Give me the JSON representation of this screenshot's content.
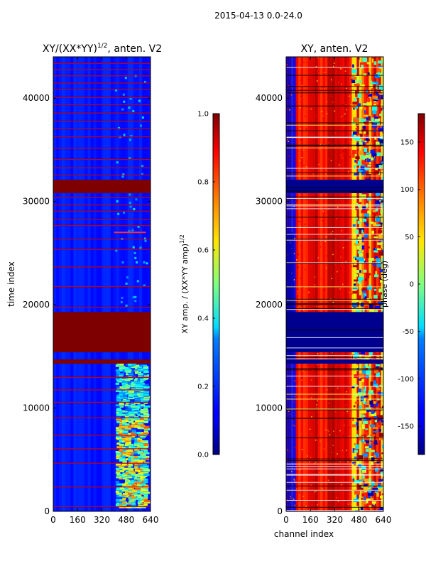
{
  "figure_title": "2015-04-13 0.0-24.0",
  "chart_data": [
    {
      "type": "heatmap",
      "title": "XY/(XX*YY)^{1/2}, anten. V2",
      "title_main": "XY/(XX*YY)",
      "title_exp": "1/2",
      "title_tail": ", anten. V2",
      "xlabel": "",
      "ylabel": "time index",
      "xlim": [
        0,
        640
      ],
      "ylim": [
        0,
        44000
      ],
      "xticks": [
        0,
        160,
        320,
        480,
        640
      ],
      "yticks": [
        0,
        10000,
        20000,
        30000,
        40000
      ],
      "colormap": "jet",
      "colorbar": {
        "label": "XY amp. / (XX*YY amp)^{1/2}",
        "label_main": "XY amp. / (XX*YY amp)",
        "label_exp": "1/2",
        "min": 0.0,
        "max": 1.0,
        "ticks": [
          "0.0",
          "0.2",
          "0.4",
          "0.6",
          "0.8",
          "1.0"
        ]
      },
      "saturated_time_bands": [
        [
          14300,
          14700
        ],
        [
          15400,
          19300
        ],
        [
          30800,
          32100
        ]
      ]
    },
    {
      "type": "heatmap",
      "title": "XY, anten. V2",
      "xlabel": "channel index",
      "ylabel": "",
      "xlim": [
        0,
        640
      ],
      "ylim": [
        0,
        44000
      ],
      "xticks": [
        0,
        160,
        320,
        480,
        640
      ],
      "yticks": [
        0,
        10000,
        20000,
        30000,
        40000
      ],
      "colormap": "jet",
      "colorbar": {
        "label": "phase (deg)",
        "min": -180,
        "max": 180,
        "ticks": [
          "-150",
          "-100",
          "-50",
          "0",
          "50",
          "100",
          "150"
        ]
      },
      "flagged_time_bands": [
        [
          14300,
          14700
        ],
        [
          15400,
          19300
        ],
        [
          30800,
          32100
        ]
      ]
    }
  ]
}
